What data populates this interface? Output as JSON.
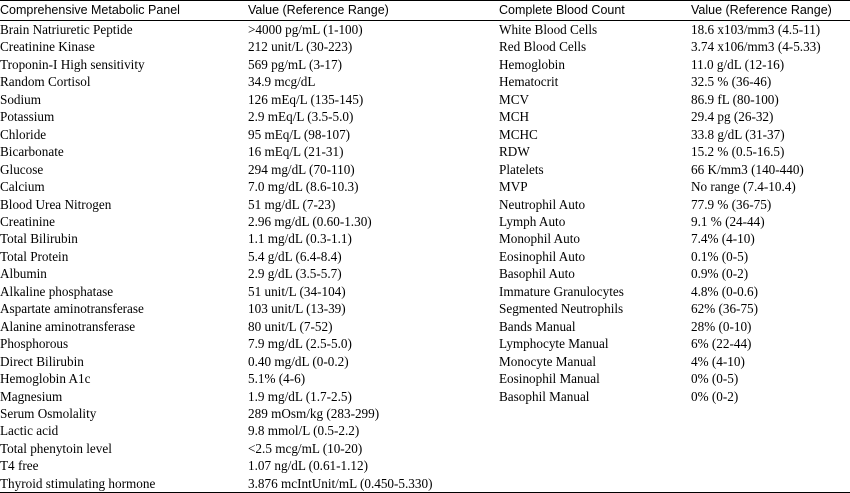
{
  "headers": {
    "cmp": "Comprehensive Metabolic Panel",
    "cmp_value": "Value (Reference Range)",
    "cbc": "Complete Blood Count",
    "cbc_value": "Value (Reference Range)"
  },
  "rows": [
    {
      "cmp_test": "Brain Natriuretic Peptide",
      "cmp_value": ">4000 pg/mL (1-100)",
      "cbc_test": "White Blood Cells",
      "cbc_value": "18.6 x103/mm3 (4.5-11)"
    },
    {
      "cmp_test": "Creatinine Kinase",
      "cmp_value": "212 unit/L (30-223)",
      "cbc_test": "Red Blood Cells",
      "cbc_value": "3.74 x106/mm3 (4-5.33)"
    },
    {
      "cmp_test": "Troponin-I High sensitivity",
      "cmp_value": "569 pg/mL (3-17)",
      "cbc_test": "Hemoglobin",
      "cbc_value": "11.0 g/dL (12-16)"
    },
    {
      "cmp_test": "Random Cortisol",
      "cmp_value": "34.9 mcg/dL",
      "cbc_test": "Hematocrit",
      "cbc_value": "32.5 % (36-46)"
    },
    {
      "cmp_test": "Sodium",
      "cmp_value": "126 mEq/L (135-145)",
      "cbc_test": "MCV",
      "cbc_value": "86.9 fL (80-100)"
    },
    {
      "cmp_test": "Potassium",
      "cmp_value": "2.9 mEq/L (3.5-5.0)",
      "cbc_test": "MCH",
      "cbc_value": "29.4 pg (26-32)"
    },
    {
      "cmp_test": "Chloride",
      "cmp_value": "95 mEq/L (98-107)",
      "cbc_test": "MCHC",
      "cbc_value": "33.8 g/dL (31-37)"
    },
    {
      "cmp_test": "Bicarbonate",
      "cmp_value": "16 mEq/L (21-31)",
      "cbc_test": "RDW",
      "cbc_value": "15.2 % (0.5-16.5)"
    },
    {
      "cmp_test": "Glucose",
      "cmp_value": "294 mg/dL (70-110)",
      "cbc_test": "Platelets",
      "cbc_value": "66 K/mm3 (140-440)"
    },
    {
      "cmp_test": "Calcium",
      "cmp_value": "7.0 mg/dL (8.6-10.3)",
      "cbc_test": "MVP",
      "cbc_value": "No range (7.4-10.4)"
    },
    {
      "cmp_test": "Blood Urea Nitrogen",
      "cmp_value": "51 mg/dL (7-23)",
      "cbc_test": "Neutrophil Auto",
      "cbc_value": "77.9 % (36-75)"
    },
    {
      "cmp_test": "Creatinine",
      "cmp_value": "2.96 mg/dL (0.60-1.30)",
      "cbc_test": "Lymph Auto",
      "cbc_value": "9.1 % (24-44)"
    },
    {
      "cmp_test": "Total Bilirubin",
      "cmp_value": "1.1 mg/dL (0.3-1.1)",
      "cbc_test": "Monophil Auto",
      "cbc_value": "7.4% (4-10)"
    },
    {
      "cmp_test": "Total Protein",
      "cmp_value": "5.4 g/dL (6.4-8.4)",
      "cbc_test": "Eosinophil Auto",
      "cbc_value": "0.1% (0-5)"
    },
    {
      "cmp_test": "Albumin",
      "cmp_value": "2.9 g/dL (3.5-5.7)",
      "cbc_test": "Basophil Auto",
      "cbc_value": "0.9% (0-2)"
    },
    {
      "cmp_test": "Alkaline phosphatase",
      "cmp_value": "51 unit/L (34-104)",
      "cbc_test": "Immature Granulocytes",
      "cbc_value": "4.8% (0-0.6)"
    },
    {
      "cmp_test": "Aspartate aminotransferase",
      "cmp_value": "103 unit/L (13-39)",
      "cbc_test": "Segmented Neutrophils",
      "cbc_value": "62% (36-75)"
    },
    {
      "cmp_test": "Alanine aminotransferase",
      "cmp_value": "80 unit/L (7-52)",
      "cbc_test": "Bands Manual",
      "cbc_value": "28% (0-10)"
    },
    {
      "cmp_test": "Phosphorous",
      "cmp_value": "7.9 mg/dL (2.5-5.0)",
      "cbc_test": "Lymphocyte Manual",
      "cbc_value": "6% (22-44)"
    },
    {
      "cmp_test": "Direct Bilirubin",
      "cmp_value": "0.40 mg/dL (0-0.2)",
      "cbc_test": "Monocyte Manual",
      "cbc_value": "4% (4-10)"
    },
    {
      "cmp_test": "Hemoglobin A1c",
      "cmp_value": "5.1% (4-6)",
      "cbc_test": "Eosinophil Manual",
      "cbc_value": "0% (0-5)"
    },
    {
      "cmp_test": "Magnesium",
      "cmp_value": "1.9 mg/dL (1.7-2.5)",
      "cbc_test": "Basophil Manual",
      "cbc_value": "0% (0-2)"
    },
    {
      "cmp_test": "Serum Osmolality",
      "cmp_value": "289 mOsm/kg (283-299)",
      "cbc_test": "",
      "cbc_value": ""
    },
    {
      "cmp_test": "Lactic acid",
      "cmp_value": "9.8 mmol/L (0.5-2.2)",
      "cbc_test": "",
      "cbc_value": ""
    },
    {
      "cmp_test": "Total phenytoin level",
      "cmp_value": "<2.5 mcg/mL (10-20)",
      "cbc_test": "",
      "cbc_value": ""
    },
    {
      "cmp_test": "T4 free",
      "cmp_value": "1.07 ng/dL (0.61-1.12)",
      "cbc_test": "",
      "cbc_value": ""
    },
    {
      "cmp_test": "Thyroid stimulating hormone",
      "cmp_value": "3.876 mcIntUnit/mL (0.450-5.330)",
      "cbc_test": "",
      "cbc_value": ""
    }
  ]
}
